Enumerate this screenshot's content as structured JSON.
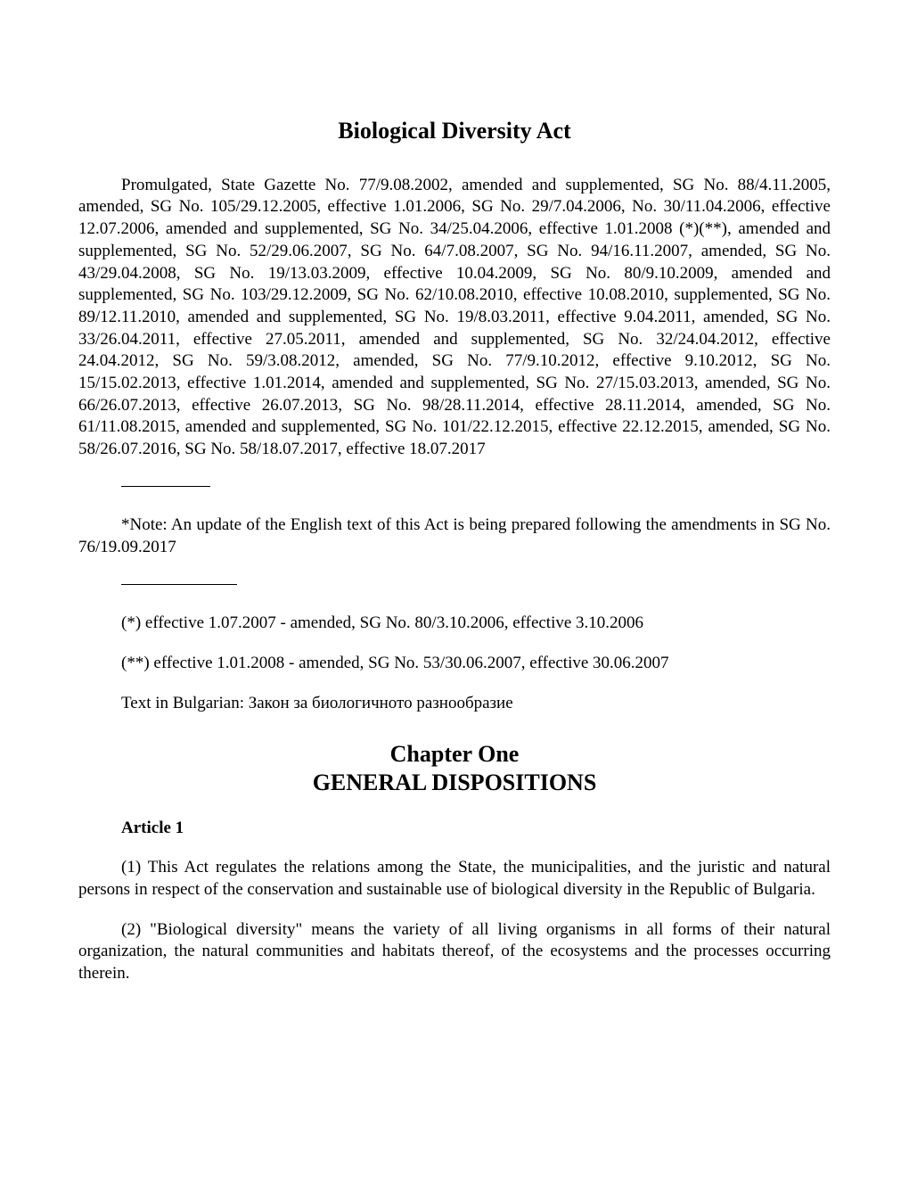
{
  "title": "Biological Diversity Act",
  "promulgation": "Promulgated, State Gazette No. 77/9.08.2002, amended and supplemented, SG No. 88/4.11.2005, amended, SG No. 105/29.12.2005, effective 1.01.2006, SG No. 29/7.04.2006, No. 30/11.04.2006, effective 12.07.2006, amended and supplemented, SG No. 34/25.04.2006, effective 1.01.2008 (*)(**), amended and supplemented, SG No. 52/29.06.2007, SG No. 64/7.08.2007, SG No. 94/16.11.2007, amended, SG No. 43/29.04.2008, SG No. 19/13.03.2009, effective 10.04.2009, SG No. 80/9.10.2009, amended and supplemented, SG No. 103/29.12.2009, SG No. 62/10.08.2010, effective 10.08.2010, supplemented, SG No. 89/12.11.2010, amended and supplemented, SG No. 19/8.03.2011, effective 9.04.2011, amended, SG No. 33/26.04.2011, effective 27.05.2011, amended and supplemented, SG No. 32/24.04.2012, effective 24.04.2012, SG No. 59/3.08.2012, amended, SG No. 77/9.10.2012, effective 9.10.2012, SG No. 15/15.02.2013, effective 1.01.2014, amended and supplemented, SG No. 27/15.03.2013, amended, SG No. 66/26.07.2013, effective 26.07.2013, SG No. 98/28.11.2014, effective 28.11.2014, amended, SG No. 61/11.08.2015, amended and supplemented, SG No. 101/22.12.2015, effective 22.12.2015, amended, SG No. 58/26.07.2016, SG No. 58/18.07.2017, effective 18.07.2017",
  "note": "*Note: An update of the English text of this Act is being prepared following the amendments in SG No. 76/19.09.2017",
  "footnote1": "(*) effective 1.07.2007 - amended, SG No. 80/3.10.2006, effective 3.10.2006",
  "footnote2": "(**) effective 1.01.2008 - amended, SG No. 53/30.06.2007, effective 30.06.2007",
  "text_in_bulgarian": "Text in Bulgarian: Закон за биологичното разнообразие",
  "chapter": {
    "line1": "Chapter One",
    "line2": "GENERAL DISPOSITIONS"
  },
  "article1": {
    "heading": "Article 1",
    "para1": "(1) This Act regulates the relations among the State, the municipalities, and the juristic and natural persons in respect of the conservation and sustainable use of biological diversity in the Republic of Bulgaria.",
    "para2": "(2) \"Biological diversity\" means the variety of all living organisms in all forms of their natural organization, the natural communities and habitats thereof, of the ecosystems and the processes occurring therein."
  }
}
